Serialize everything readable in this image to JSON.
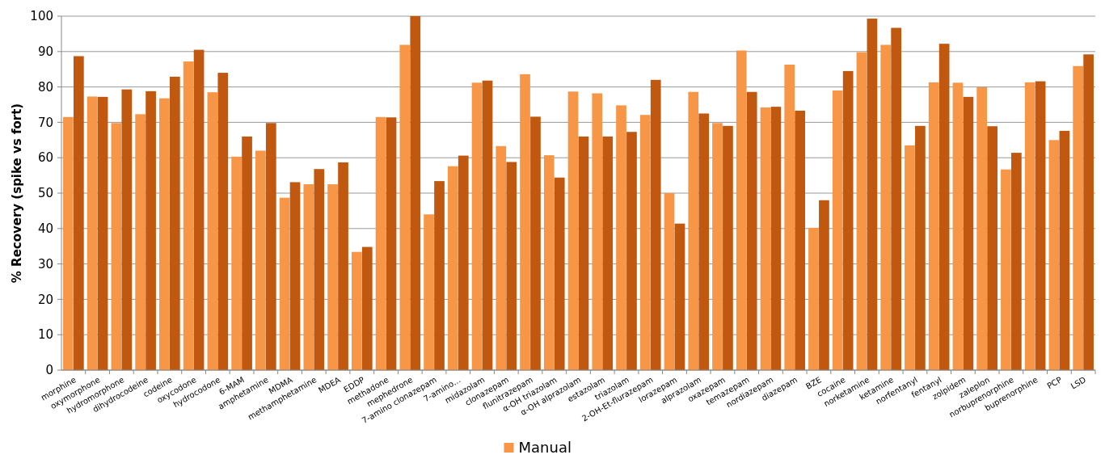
{
  "chart_data": {
    "type": "bar",
    "ylabel": "% Recovery (spike vs fort)",
    "categories": [
      "morphine",
      "oxymorphone",
      "hydromorphone",
      "dihydrocodeine",
      "codeine",
      "oxycodone",
      "hydrocodone",
      "6-MAM",
      "amphetamine",
      "MDMA",
      "methamphetamine",
      "MDEA",
      "EDDP",
      "methadone",
      "mephedrone",
      "7-amino clonazepam",
      "7-amino…",
      "midazolam",
      "clonazepam",
      "flunitrazepam",
      "α-OH triazolam",
      "α-OH alprazolam",
      "estazolam",
      "triazolam",
      "2-OH-Et-flurazepam",
      "lorazepam",
      "alprazolam",
      "oxazepam",
      "temazepam",
      "nordiazepam",
      "diazepam",
      "BZE",
      "cocaine",
      "norketamine",
      "ketamine",
      "norfentanyl",
      "fentanyl",
      "zolpidem",
      "zaleplon",
      "norbuprenorphine",
      "buprenorphine",
      "PCP",
      "LSD"
    ],
    "series": [
      {
        "name": "Manual",
        "color": "#f79646",
        "values": [
          71.5,
          77.3,
          69.8,
          72.3,
          76.8,
          87.2,
          78.5,
          60.3,
          62,
          48.7,
          52.5,
          52.5,
          33.4,
          71.5,
          91.9,
          44,
          57.6,
          81.2,
          63.3,
          83.6,
          60.7,
          78.7,
          78.2,
          74.8,
          72.1,
          50,
          78.6,
          69.8,
          90.3,
          74.2,
          86.3,
          40.2,
          79,
          89.8,
          91.9,
          63.5,
          81.3,
          81.2,
          79.9,
          56.7,
          81.3,
          65,
          85.9
        ]
      },
      {
        "color": "#c0580f",
        "values": [
          88.7,
          77.2,
          79.3,
          78.8,
          82.9,
          90.5,
          84,
          66,
          69.8,
          53.1,
          56.8,
          58.7,
          34.8,
          71.4,
          100,
          53.4,
          60.6,
          81.8,
          58.8,
          71.6,
          54.4,
          66,
          66,
          67.3,
          82,
          41.4,
          72.5,
          69,
          78.6,
          74.4,
          73.3,
          48,
          84.5,
          99.3,
          96.7,
          69,
          92.2,
          77.2,
          68.9,
          61.4,
          81.6,
          67.6,
          89.2
        ]
      }
    ],
    "ylim": [
      0,
      100
    ],
    "yticks": [
      0,
      10,
      20,
      30,
      40,
      50,
      60,
      70,
      80,
      90,
      100
    ],
    "grid": "y",
    "legend": "bottom"
  }
}
